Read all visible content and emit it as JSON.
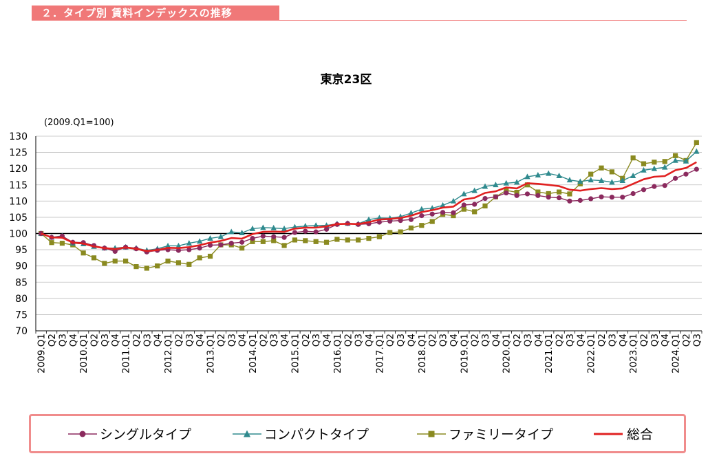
{
  "header": {
    "title": "２．タイプ別 賃料インデックスの推移"
  },
  "chart_data": {
    "type": "line",
    "title": "東京23区",
    "base_note": "(2009.Q1=100)",
    "ylim": [
      70,
      130
    ],
    "yticks": [
      70,
      75,
      80,
      85,
      90,
      95,
      100,
      105,
      110,
      115,
      120,
      125,
      130
    ],
    "reference_line": 100,
    "x_labels": [
      "2009.Q1",
      "Q2",
      "Q3",
      "Q4",
      "2010.Q1",
      "Q2",
      "Q3",
      "Q4",
      "2011.Q1",
      "Q2",
      "Q3",
      "Q4",
      "2012.Q1",
      "Q2",
      "Q3",
      "Q4",
      "2013.Q1",
      "Q2",
      "Q3",
      "Q4",
      "2014.Q1",
      "Q2",
      "Q3",
      "Q4",
      "2015.Q1",
      "Q2",
      "Q3",
      "Q4",
      "2016.Q1",
      "Q2",
      "Q3",
      "Q4",
      "2017.Q1",
      "Q2",
      "Q3",
      "Q4",
      "2018.Q1",
      "Q2",
      "Q3",
      "Q4",
      "2019.Q1",
      "Q2",
      "Q3",
      "Q4",
      "2020.Q1",
      "Q2",
      "Q3",
      "Q4",
      "2021.Q1",
      "Q2",
      "Q3",
      "Q4",
      "2022.Q1",
      "Q2",
      "Q3",
      "Q4",
      "2023.Q1",
      "Q2",
      "Q3",
      "Q4",
      "2024.Q1",
      "Q2",
      "Q3"
    ],
    "series": [
      {
        "name": "シングルタイプ",
        "color": "#8b2a5e",
        "marker": "circle",
        "values": [
          100,
          98.8,
          99.2,
          97.3,
          97.2,
          96.3,
          95.5,
          94.5,
          95.8,
          95.3,
          94.3,
          94.8,
          95.0,
          94.8,
          95.0,
          95.5,
          96.4,
          96.5,
          97.0,
          97.3,
          98.5,
          99.2,
          99.0,
          98.8,
          100.3,
          100.7,
          100.5,
          101.3,
          102.8,
          103.1,
          102.8,
          103.0,
          103.5,
          103.8,
          104.0,
          104.3,
          105.5,
          106.0,
          106.5,
          106.4,
          108.8,
          109.0,
          110.8,
          111.3,
          112.5,
          111.7,
          112.2,
          111.7,
          111.2,
          111.0,
          110.0,
          110.2,
          110.7,
          111.3,
          111.2,
          111.2,
          112.3,
          113.5,
          114.5,
          114.8,
          117.0,
          118.3,
          119.8
        ]
      },
      {
        "name": "コンパクトタイプ",
        "color": "#2f8a8e",
        "marker": "triangle",
        "values": [
          100,
          98.8,
          99.3,
          97.0,
          96.8,
          96.0,
          95.5,
          95.5,
          95.8,
          95.5,
          94.8,
          95.3,
          96.2,
          96.2,
          97.0,
          97.6,
          98.5,
          99.0,
          100.5,
          100.2,
          101.5,
          101.8,
          101.7,
          101.5,
          102.0,
          102.3,
          102.5,
          102.5,
          103.0,
          103.1,
          103.0,
          104.3,
          104.8,
          104.7,
          105.2,
          106.3,
          107.5,
          107.8,
          108.7,
          110.0,
          112.2,
          113.2,
          114.5,
          115.0,
          115.5,
          115.8,
          117.5,
          118.0,
          118.5,
          117.8,
          116.5,
          116.0,
          116.5,
          116.3,
          115.8,
          116.3,
          117.8,
          119.5,
          120.0,
          120.4,
          122.5,
          122.3,
          125.3
        ]
      },
      {
        "name": "ファミリータイプ",
        "color": "#8a8a20",
        "marker": "square",
        "values": [
          100,
          97.2,
          97.0,
          96.5,
          94.0,
          92.5,
          90.8,
          91.5,
          91.5,
          89.8,
          89.3,
          90.0,
          91.5,
          91.0,
          90.5,
          92.5,
          93.0,
          96.5,
          96.5,
          95.5,
          97.5,
          97.5,
          97.8,
          96.3,
          98.0,
          97.8,
          97.5,
          97.3,
          98.2,
          98.0,
          98.0,
          98.5,
          99.0,
          100.3,
          100.5,
          101.7,
          102.5,
          103.7,
          105.9,
          105.5,
          107.5,
          106.7,
          108.5,
          111.3,
          113.3,
          112.7,
          115.0,
          112.8,
          112.3,
          112.8,
          112.2,
          115.3,
          118.3,
          120.2,
          119.0,
          117.0,
          123.3,
          121.5,
          122.0,
          122.2,
          124.0,
          122.5,
          128.0
        ]
      },
      {
        "name": "総合",
        "color": "#e02020",
        "marker": "none",
        "values": [
          100,
          98.8,
          98.7,
          97.2,
          96.9,
          96.0,
          95.5,
          95.2,
          95.7,
          95.3,
          94.6,
          94.9,
          95.6,
          95.5,
          95.8,
          96.4,
          97.2,
          97.7,
          98.6,
          98.4,
          99.8,
          100.5,
          100.6,
          100.5,
          101.5,
          101.8,
          101.8,
          102.2,
          102.9,
          103.0,
          102.9,
          103.5,
          104.3,
          104.5,
          104.8,
          105.5,
          106.6,
          107.2,
          108.0,
          108.3,
          110.5,
          111.0,
          112.5,
          113.0,
          114.2,
          113.9,
          115.5,
          115.3,
          115.0,
          114.6,
          113.5,
          113.2,
          113.7,
          114.0,
          113.7,
          113.9,
          115.3,
          116.7,
          117.5,
          117.7,
          119.5,
          120.2,
          122.0
        ]
      }
    ]
  },
  "legend": {
    "items": [
      {
        "label": "シングルタイプ",
        "color": "#8b2a5e",
        "marker": "circle"
      },
      {
        "label": "コンパクトタイプ",
        "color": "#2f8a8e",
        "marker": "triangle"
      },
      {
        "label": "ファミリータイプ",
        "color": "#8a8a20",
        "marker": "square"
      },
      {
        "label": "総合",
        "color": "#e02020",
        "marker": "none"
      }
    ]
  }
}
